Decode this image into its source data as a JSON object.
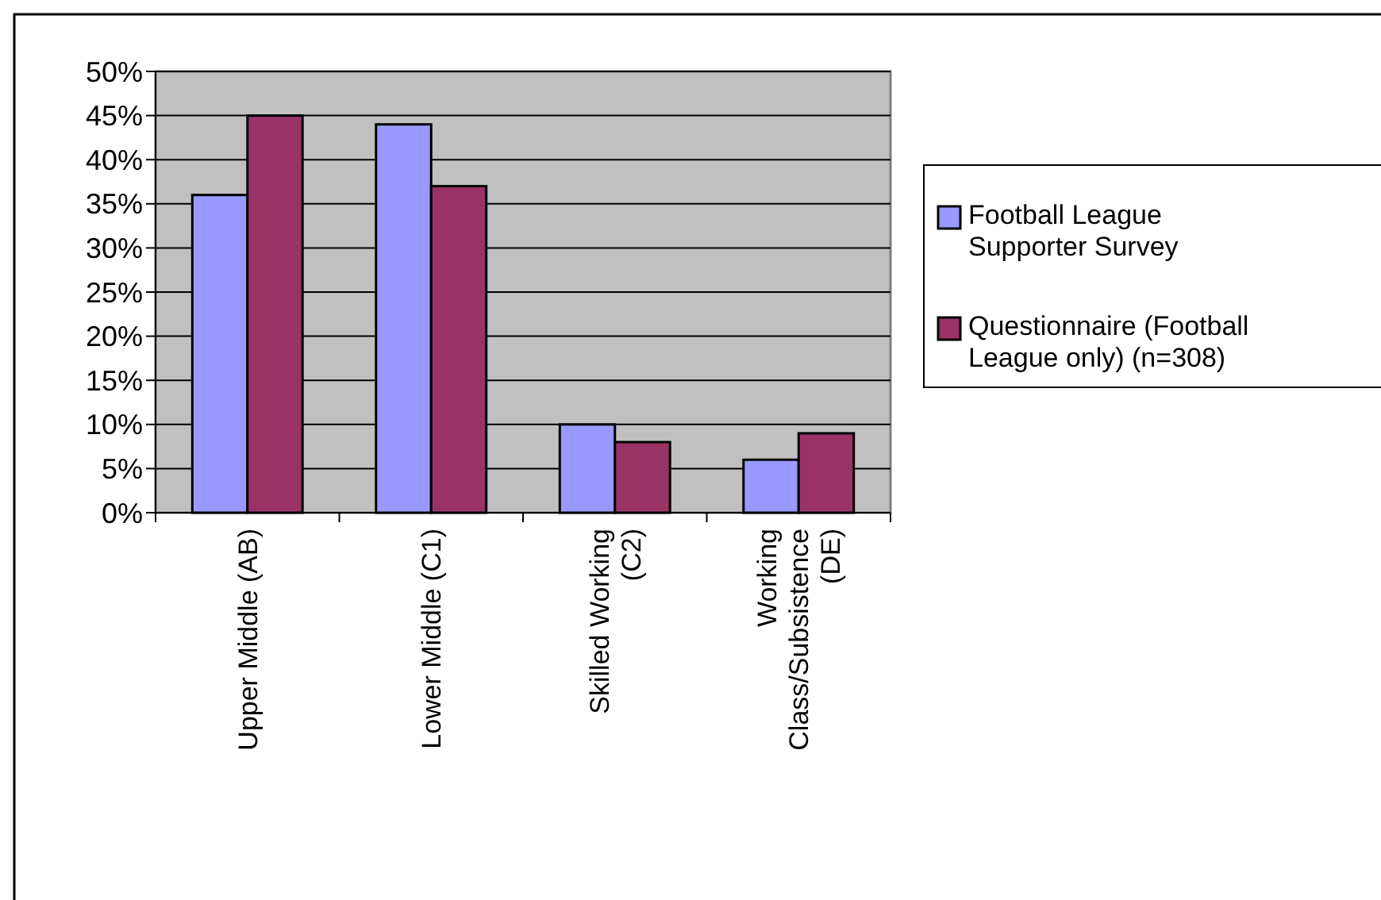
{
  "chart_data": {
    "type": "bar",
    "categories": [
      "Upper Middle (AB)",
      "Lower Middle (C1)",
      "Skilled Working (C2)",
      "Working Class/Subsistence (DE)"
    ],
    "series": [
      {
        "name": "Football League Supporter Survey",
        "color": "#9999ff",
        "values": [
          36,
          44,
          10,
          6
        ]
      },
      {
        "name": "Questionnaire (Football League only) (n=308)",
        "color": "#993366",
        "values": [
          45,
          37,
          8,
          9
        ]
      }
    ],
    "ylim": [
      0,
      50
    ],
    "yticks": [
      {
        "value": 0,
        "label": "0%"
      },
      {
        "value": 5,
        "label": "5%"
      },
      {
        "value": 10,
        "label": "10%"
      },
      {
        "value": 15,
        "label": "15%"
      },
      {
        "value": 20,
        "label": "20%"
      },
      {
        "value": 25,
        "label": "25%"
      },
      {
        "value": 30,
        "label": "30%"
      },
      {
        "value": 35,
        "label": "35%"
      },
      {
        "value": 40,
        "label": "40%"
      },
      {
        "value": 45,
        "label": "45%"
      },
      {
        "value": 50,
        "label": "50%"
      }
    ],
    "grid": "y",
    "legend": "right"
  }
}
